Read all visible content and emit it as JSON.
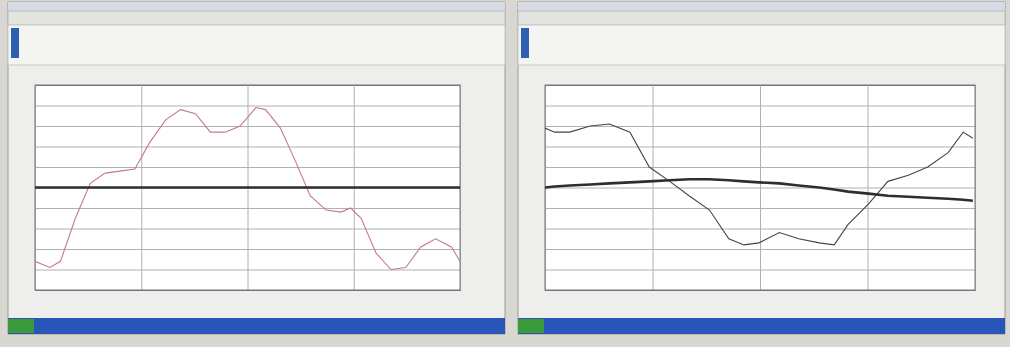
{
  "chart_data": [
    {
      "type": "line",
      "grid": true,
      "tick_labels": false,
      "xlim": [
        0,
        4
      ],
      "xticks": [
        0,
        1,
        2,
        3,
        4
      ],
      "ylim": [
        -5,
        5
      ],
      "yticks": [
        -4,
        -3,
        -2,
        -1,
        0,
        1,
        2,
        3,
        4
      ],
      "x": [
        0,
        0.14,
        0.24,
        0.38,
        0.52,
        0.66,
        0.8,
        0.94,
        1.08,
        1.23,
        1.37,
        1.51,
        1.65,
        1.79,
        1.93,
        2.08,
        2.17,
        2.31,
        2.45,
        2.59,
        2.74,
        2.88,
        2.97,
        3.07,
        3.21,
        3.35,
        3.49,
        3.63,
        3.77,
        3.92,
        4.0
      ],
      "series": [
        {
          "color": "#c47a84",
          "line_style": "solid",
          "values": [
            -3.6,
            -3.9,
            -3.6,
            -1.5,
            0.2,
            0.7,
            0.8,
            0.9,
            2.2,
            3.3,
            3.8,
            3.6,
            2.7,
            2.7,
            3.0,
            3.9,
            3.8,
            2.9,
            1.3,
            -0.4,
            -1.1,
            -1.2,
            -1.0,
            -1.5,
            -3.2,
            -4.0,
            -3.9,
            -2.9,
            -2.5,
            -2.9,
            -3.6
          ]
        },
        {
          "color": "#2e2e2e",
          "line_style": "thick",
          "values": [
            0,
            0,
            0,
            0,
            0,
            0,
            0,
            0,
            0,
            0,
            0,
            0,
            0,
            0,
            0,
            0,
            0,
            0,
            0,
            0,
            0,
            0,
            0,
            0,
            0,
            0,
            0,
            0,
            0,
            0,
            0
          ]
        }
      ]
    },
    {
      "type": "line",
      "grid": true,
      "tick_labels": false,
      "xlim": [
        0,
        4
      ],
      "xticks": [
        0,
        1,
        2,
        3,
        4
      ],
      "ylim": [
        -5,
        5
      ],
      "yticks": [
        -4,
        -3,
        -2,
        -1,
        0,
        1,
        2,
        3,
        4
      ],
      "x": [
        0,
        0.09,
        0.23,
        0.42,
        0.6,
        0.79,
        0.97,
        1.16,
        1.34,
        1.53,
        1.71,
        1.85,
        1.99,
        2.18,
        2.36,
        2.55,
        2.69,
        2.82,
        3.01,
        3.19,
        3.38,
        3.56,
        3.75,
        3.89,
        3.98
      ],
      "series": [
        {
          "color": "#454545",
          "line_style": "solid",
          "values": [
            2.9,
            2.7,
            2.7,
            3.0,
            3.1,
            2.7,
            1.0,
            0.3,
            -0.4,
            -1.1,
            -2.5,
            -2.8,
            -2.7,
            -2.2,
            -2.5,
            -2.7,
            -2.8,
            -1.8,
            -0.8,
            0.3,
            0.6,
            1.0,
            1.7,
            2.7,
            2.4
          ]
        },
        {
          "color": "#2e2e2e",
          "line_style": "thick",
          "values": [
            0,
            0.05,
            0.1,
            0.15,
            0.2,
            0.25,
            0.3,
            0.35,
            0.4,
            0.4,
            0.35,
            0.3,
            0.25,
            0.2,
            0.1,
            0,
            -0.1,
            -0.2,
            -0.3,
            -0.4,
            -0.45,
            -0.5,
            -0.55,
            -0.6,
            -0.65
          ]
        }
      ]
    }
  ]
}
